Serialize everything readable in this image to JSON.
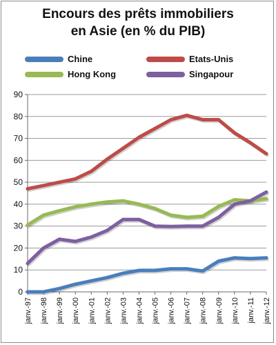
{
  "chart_data": {
    "type": "line",
    "title": [
      "Encours des prêts immobiliers",
      "en Asie (en % du PIB)"
    ],
    "xlabel": "",
    "ylabel": "",
    "ylim": [
      0,
      90
    ],
    "yticks": [
      0,
      10,
      20,
      30,
      40,
      50,
      60,
      70,
      80,
      90
    ],
    "grid": "horizontal",
    "legend_placement": "top",
    "categories": [
      "janv.-97",
      "janv.-98",
      "janv.-99",
      "janv.-00",
      "janv.-01",
      "janv.-02",
      "janv.-03",
      "janv.-04",
      "janv.-05",
      "janv.-06",
      "janv.-07",
      "janv.-08",
      "janv.-09",
      "janv.-10",
      "janv.-11",
      "janv.-12"
    ],
    "series": [
      {
        "name": "Chine",
        "color": "#4a7ebb",
        "values": [
          0,
          0,
          1.5,
          3.5,
          5,
          6.5,
          8.5,
          9.8,
          9.8,
          10.5,
          10.5,
          9.5,
          14,
          15.5,
          15.2,
          15.5
        ]
      },
      {
        "name": "Etats-Unis",
        "color": "#be4b48",
        "values": [
          47,
          48.5,
          50,
          51.5,
          55,
          60.5,
          65.5,
          70.5,
          74.5,
          78.5,
          80.5,
          78.5,
          78.5,
          72.5,
          68,
          63
        ]
      },
      {
        "name": "Hong Kong",
        "color": "#98b954",
        "values": [
          30.5,
          35,
          37,
          38.8,
          40,
          41,
          41.5,
          40,
          38,
          35,
          34,
          34.5,
          39,
          42,
          41.5,
          42.5
        ]
      },
      {
        "name": "Singapour",
        "color": "#7d60a0",
        "values": [
          13,
          20,
          24,
          23,
          25,
          28,
          33,
          33,
          30,
          29.8,
          30,
          30,
          34,
          40,
          41.5,
          45.5
        ]
      }
    ]
  }
}
